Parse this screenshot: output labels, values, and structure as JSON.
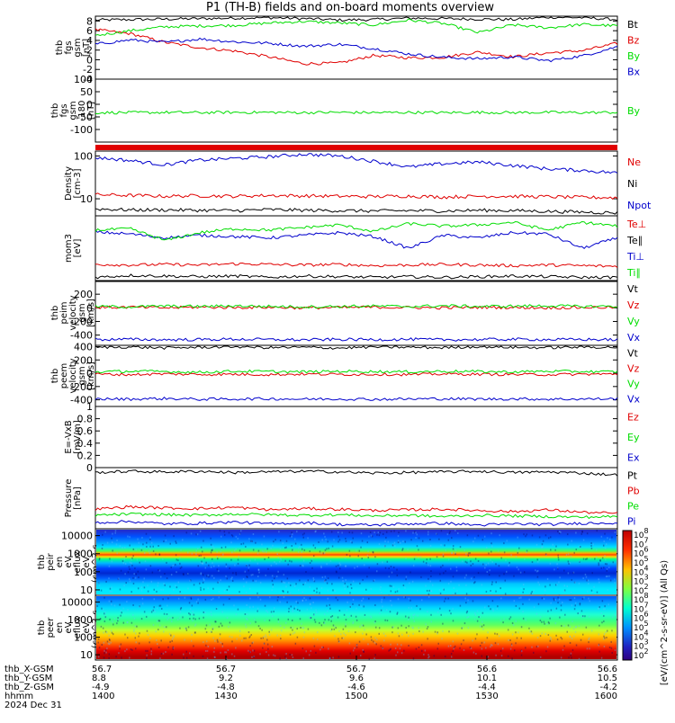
{
  "title": "P1 (TH-B) fields and on-board moments overview",
  "colors": {
    "black": "#000000",
    "red": "#e00000",
    "green": "#00dd00",
    "blue": "#0000cc"
  },
  "chart_data": [
    {
      "type": "line",
      "panel": "fgs",
      "ylabel": [
        "thb",
        "fgs",
        "gsm",
        "[nT]"
      ],
      "ylim": [
        -4,
        9
      ],
      "yticks": [
        -4,
        -2,
        0,
        2,
        4,
        6,
        8
      ],
      "series": [
        {
          "name": "Bt",
          "color": "black",
          "values": [
            8.2,
            8.3,
            8.4,
            8.5,
            8.6,
            8.7,
            8.5,
            8.2,
            8.3,
            8.6,
            8.5,
            8.4,
            8.3,
            8.8,
            8.7,
            8.3
          ]
        },
        {
          "name": "Bz",
          "color": "red",
          "values": [
            6.2,
            5.4,
            3.6,
            2.5,
            1.8,
            0.6,
            -0.8,
            -0.7,
            0.9,
            0.4,
            0.5,
            1.6,
            0.6,
            1.4,
            1.9,
            3.4
          ]
        },
        {
          "name": "By",
          "color": "green",
          "values": [
            5.0,
            6.0,
            6.8,
            7.0,
            7.1,
            7.6,
            7.9,
            7.6,
            7.2,
            8.2,
            7.5,
            5.6,
            7.2,
            6.6,
            7.3,
            7.0
          ]
        },
        {
          "name": "Bx",
          "color": "blue",
          "values": [
            3.2,
            4.1,
            3.6,
            4.3,
            3.7,
            3.4,
            2.8,
            3.2,
            2.3,
            1.2,
            0.5,
            0.2,
            0.6,
            -0.2,
            0.8,
            2.7
          ]
        }
      ]
    },
    {
      "type": "line",
      "panel": "fgs-dsl",
      "ylabel": [
        "thb",
        "fgs",
        "gsm",
        "-180",
        "[nT]"
      ],
      "ylim": [
        -150,
        100
      ],
      "yticks": [
        -100,
        -50,
        0,
        50,
        100
      ],
      "series": [
        {
          "name": "By",
          "color": "green",
          "values": [
            -33,
            -33,
            -32,
            -33,
            -32,
            -32,
            -33,
            -32,
            -33,
            -32,
            -33,
            -32,
            -33,
            -32,
            -33,
            -32
          ]
        }
      ]
    },
    {
      "type": "line",
      "panel": "density",
      "ylabel": [
        "Density",
        "[cm-3]"
      ],
      "yscale": "log",
      "ylim": [
        4,
        130
      ],
      "yticks": [
        10,
        100
      ],
      "series": [
        {
          "name": "Ne",
          "color": "red",
          "values": [
            12.5,
            12,
            11.5,
            11.8,
            11.5,
            12,
            11.7,
            11.5,
            11.3,
            11.6,
            11,
            11.5,
            11.4,
            11.2,
            10.8,
            10.6
          ]
        },
        {
          "name": "Ni",
          "color": "black",
          "values": [
            5.8,
            5.5,
            5.5,
            5.4,
            5.3,
            5.6,
            5.4,
            5.3,
            5.2,
            5.3,
            5.2,
            5.4,
            5.3,
            5.1,
            4.9,
            4.7
          ]
        },
        {
          "name": "Npot",
          "color": "blue",
          "values": [
            92,
            78,
            62,
            80,
            88,
            96,
            110,
            100,
            75,
            55,
            66,
            72,
            60,
            50,
            46,
            40
          ]
        }
      ]
    },
    {
      "type": "line",
      "panel": "moments-temperature",
      "ylabel": [
        "mom3",
        "[eV]"
      ],
      "ylim": [
        0,
        1
      ],
      "series": [
        {
          "name": "Te⊥",
          "color": "red",
          "values": [
            0.25,
            0.24,
            0.25,
            0.24,
            0.26,
            0.25,
            0.24,
            0.25,
            0.23,
            0.24,
            0.25,
            0.24,
            0.23,
            0.24,
            0.23,
            0.22
          ]
        },
        {
          "name": "Te∥",
          "color": "black",
          "values": [
            0.05,
            0.08,
            0.07,
            0.06,
            0.07,
            0.05,
            0.07,
            0.06,
            0.05,
            0.06,
            0.05,
            0.06,
            0.07,
            0.06,
            0.05,
            0.05
          ]
        },
        {
          "name": "Ti⊥",
          "color": "blue",
          "values": [
            0.75,
            0.72,
            0.66,
            0.7,
            0.68,
            0.66,
            0.7,
            0.74,
            0.68,
            0.5,
            0.7,
            0.66,
            0.74,
            0.72,
            0.5,
            0.66
          ]
        },
        {
          "name": "Ti∥",
          "color": "green",
          "values": [
            0.78,
            0.8,
            0.62,
            0.74,
            0.8,
            0.78,
            0.82,
            0.86,
            0.76,
            0.88,
            0.84,
            0.86,
            0.9,
            0.78,
            0.9,
            0.84
          ]
        }
      ]
    },
    {
      "type": "line",
      "panel": "peim-velocity",
      "ylabel": [
        "thb",
        "peim",
        "velocity",
        "gsm",
        "[km/s]"
      ],
      "ylim": [
        -550,
        400
      ],
      "yticks": [
        -400,
        -200,
        0,
        200
      ],
      "series": [
        {
          "name": "Vt",
          "color": "black",
          "values": [
            470,
            470,
            470,
            470,
            470,
            470,
            470,
            470,
            470,
            470,
            470,
            470,
            470,
            470,
            470,
            470
          ]
        },
        {
          "name": "Vz",
          "color": "red",
          "values": [
            5,
            10,
            0,
            10,
            5,
            8,
            0,
            5,
            10,
            5,
            0,
            8,
            5,
            0,
            5,
            8
          ]
        },
        {
          "name": "Vy",
          "color": "green",
          "values": [
            20,
            15,
            25,
            20,
            30,
            20,
            15,
            20,
            25,
            20,
            30,
            20,
            25,
            30,
            20,
            25
          ]
        },
        {
          "name": "Vx",
          "color": "blue",
          "values": [
            -465,
            -462,
            -468,
            -466,
            -460,
            -466,
            -470,
            -464,
            -466,
            -462,
            -468,
            -465,
            -462,
            -466,
            -464,
            -468
          ]
        }
      ]
    },
    {
      "type": "line",
      "panel": "peem-velocity",
      "ylabel": [
        "thb",
        "peem",
        "velocity",
        "gsm",
        "[km/s]"
      ],
      "ylim": [
        -500,
        420
      ],
      "yticks": [
        -400,
        -200,
        0,
        200,
        400
      ],
      "series": [
        {
          "name": "Vt",
          "color": "black",
          "values": [
            390,
            395,
            380,
            390,
            400,
            385,
            390,
            380,
            395,
            390,
            385,
            400,
            390,
            385,
            395,
            390
          ]
        },
        {
          "name": "Vz",
          "color": "red",
          "values": [
            -15,
            -20,
            -10,
            -18,
            -15,
            -20,
            -12,
            -18,
            -15,
            -20,
            -10,
            -15,
            -18,
            -20,
            -15,
            -12
          ]
        },
        {
          "name": "Vy",
          "color": "green",
          "values": [
            20,
            30,
            25,
            15,
            30,
            25,
            20,
            30,
            25,
            20,
            30,
            25,
            20,
            30,
            25,
            20
          ]
        },
        {
          "name": "Vx",
          "color": "blue",
          "values": [
            -385,
            -390,
            -380,
            -392,
            -388,
            -384,
            -390,
            -386,
            -392,
            -388,
            -384,
            -390,
            -386,
            -390,
            -388,
            -384
          ]
        }
      ]
    },
    {
      "type": "line",
      "panel": "efield",
      "ylabel": [
        "E=-VxB",
        "[mV/m]"
      ],
      "ylim": [
        0,
        1
      ],
      "yticks": [
        0.0,
        0.2,
        0.4,
        0.6,
        0.8,
        1.0
      ],
      "series": [
        {
          "name": "Ez",
          "color": "red",
          "values": []
        },
        {
          "name": "Ey",
          "color": "green",
          "values": []
        },
        {
          "name": "Ex",
          "color": "blue",
          "values": []
        }
      ]
    },
    {
      "type": "line",
      "panel": "pressure",
      "ylabel": [
        "Pressure",
        "[nPa]"
      ],
      "ylim": [
        0,
        1
      ],
      "series": [
        {
          "name": "Pt",
          "color": "black",
          "values": [
            0.92,
            0.94,
            0.93,
            0.94,
            0.92,
            0.93,
            0.94,
            0.93,
            0.91,
            0.92,
            0.93,
            0.94,
            0.92,
            0.93,
            0.91,
            0.88
          ]
        },
        {
          "name": "Pb",
          "color": "red",
          "values": [
            0.32,
            0.36,
            0.34,
            0.33,
            0.35,
            0.31,
            0.33,
            0.32,
            0.3,
            0.31,
            0.32,
            0.3,
            0.28,
            0.31,
            0.27,
            0.25
          ]
        },
        {
          "name": "Pe",
          "color": "green",
          "values": [
            0.22,
            0.24,
            0.23,
            0.22,
            0.24,
            0.23,
            0.22,
            0.23,
            0.21,
            0.22,
            0.2,
            0.22,
            0.21,
            0.2,
            0.19,
            0.2
          ]
        },
        {
          "name": "Pi",
          "color": "blue",
          "values": [
            0.1,
            0.12,
            0.08,
            0.09,
            0.11,
            0.08,
            0.1,
            0.07,
            0.06,
            0.08,
            0.09,
            0.06,
            0.08,
            0.07,
            0.09,
            0.1
          ]
        }
      ]
    },
    {
      "type": "heatmap",
      "panel": "peir-spectrogram",
      "ylabel": [
        "thb",
        "peir",
        "en",
        "eV",
        "eflux",
        "eV",
        "(cm^2-s-",
        "sr-eV)"
      ],
      "yscale": "log",
      "ylim": [
        5,
        24000
      ],
      "yticks": [
        10,
        100,
        1000,
        10000
      ],
      "ytick_labels": [
        "10",
        "100",
        "1000",
        "10000"
      ],
      "profile": [
        [
          10,
          "#00e8ff"
        ],
        [
          20,
          "#00c6ff"
        ],
        [
          40,
          "#0060ff"
        ],
        [
          80,
          "#0028d0"
        ],
        [
          150,
          "#0040ff"
        ],
        [
          300,
          "#00b8ff"
        ],
        [
          500,
          "#00ff90"
        ],
        [
          700,
          "#ffe000"
        ],
        [
          900,
          "#ff4000"
        ],
        [
          1100,
          "#ffb000"
        ],
        [
          1500,
          "#40ff60"
        ],
        [
          2500,
          "#00e0ff"
        ],
        [
          5000,
          "#0090ff"
        ],
        [
          10000,
          "#0050ff"
        ],
        [
          20000,
          "#2030d0"
        ]
      ]
    },
    {
      "type": "heatmap",
      "panel": "peer-spectrogram",
      "ylabel": [
        "thb",
        "peer",
        "en",
        "eV",
        "eflux",
        "eV",
        "(cm^2-s-",
        "sr-eV)"
      ],
      "yscale": "log",
      "ylim": [
        5,
        24000
      ],
      "yticks": [
        10,
        100,
        1000,
        10000
      ],
      "ytick_labels": [
        "10",
        "100",
        "1000",
        "10000"
      ],
      "profile": [
        [
          7,
          "#b00000"
        ],
        [
          15,
          "#e00000"
        ],
        [
          30,
          "#ff4000"
        ],
        [
          60,
          "#ff9000"
        ],
        [
          120,
          "#ffd000"
        ],
        [
          250,
          "#c0ff30"
        ],
        [
          500,
          "#60ff60"
        ],
        [
          1000,
          "#30ff90"
        ],
        [
          2000,
          "#20ffd0"
        ],
        [
          5000,
          "#00d8ff"
        ],
        [
          10000,
          "#00a0ff"
        ],
        [
          20000,
          "#0060ff"
        ]
      ]
    }
  ],
  "colorbars": [
    {
      "tick_labels": [
        "10^8",
        "10^7",
        "10^6",
        "10^5",
        "10^4",
        "10^3",
        "10^2"
      ],
      "title": "[eV/(cm^2-s-sr-eV)] (All Qs)"
    },
    {
      "tick_labels": [
        "10^8",
        "10^7",
        "10^6",
        "10^5",
        "10^4",
        "10^3",
        "10^2"
      ],
      "title": "[eV/(cm^2-s-sr-eV)] (All Qs)"
    }
  ],
  "colorbar_title": "[eV/(cm^2-s-sr-eV)] (All Qs)",
  "x_axis": {
    "row_labels": [
      "thb_X-GSM",
      "thb_Y-GSM",
      "thb_Z-GSM",
      "hhmm",
      "2024 Dec 31"
    ],
    "columns": [
      {
        "x": 56.7,
        "y": 8.8,
        "z": -4.9,
        "hhmm": "1400"
      },
      {
        "x": 56.7,
        "y": 9.2,
        "z": -4.8,
        "hhmm": "1430"
      },
      {
        "x": 56.7,
        "y": 9.6,
        "z": -4.6,
        "hhmm": "1500"
      },
      {
        "x": 56.6,
        "y": 10.1,
        "z": -4.4,
        "hhmm": "1530"
      },
      {
        "x": 56.6,
        "y": 10.5,
        "z": -4.2,
        "hhmm": "1600"
      }
    ]
  }
}
